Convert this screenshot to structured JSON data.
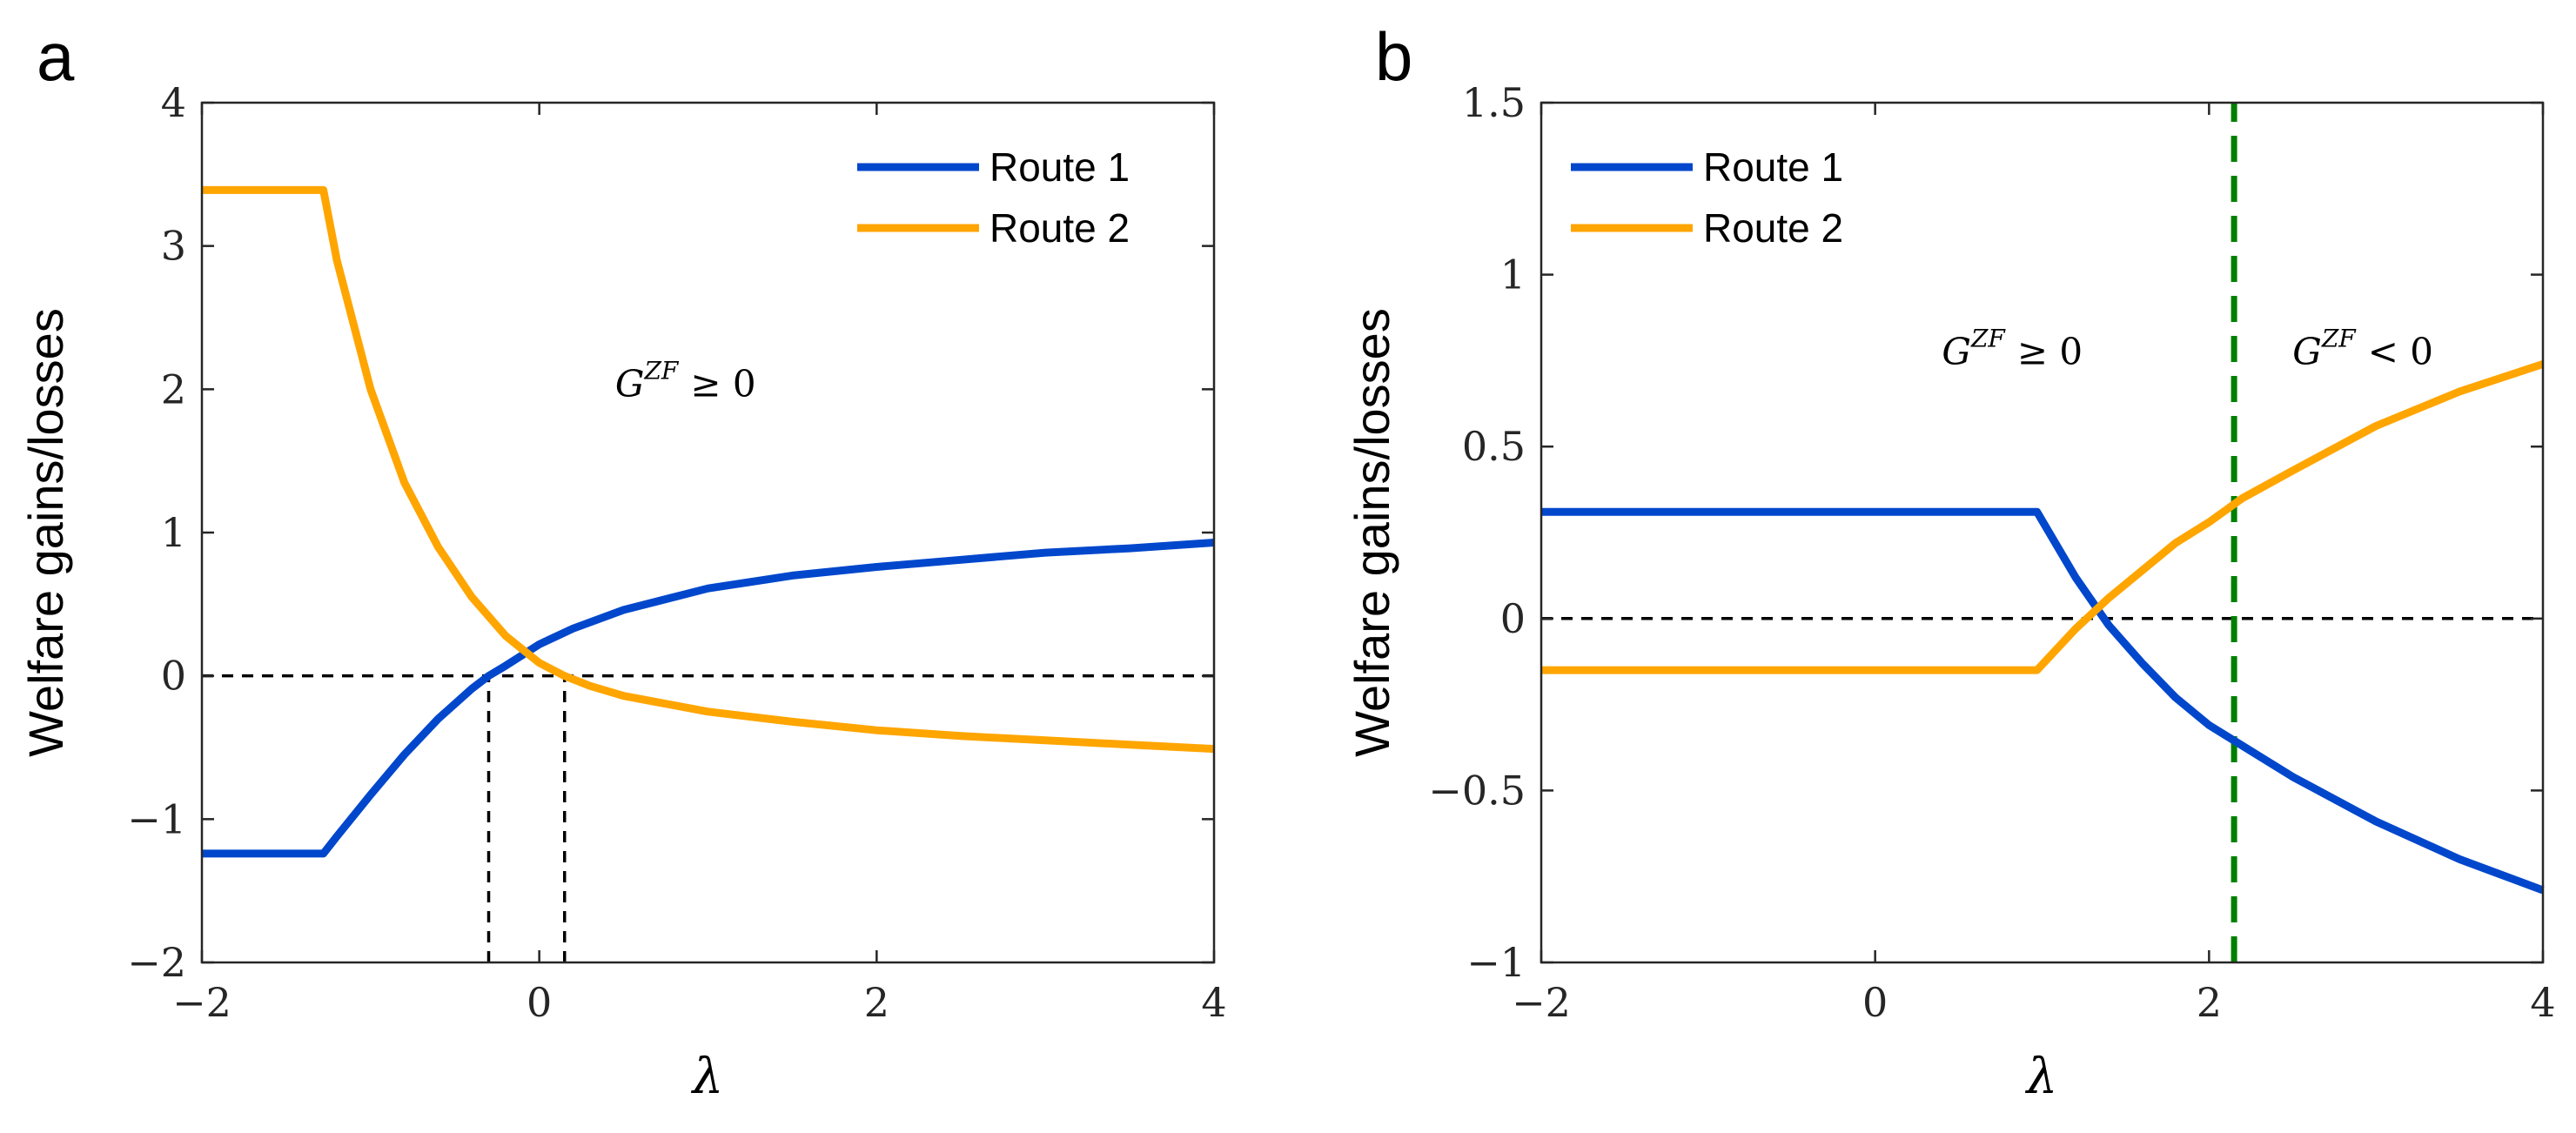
{
  "chart_data": [
    {
      "panel": "a",
      "type": "line",
      "title": "",
      "xlabel": "λ",
      "ylabel": "Welfare gains/losses",
      "xlim": [
        -2,
        4
      ],
      "ylim": [
        -2,
        4
      ],
      "xticks": [
        -2,
        0,
        2,
        4
      ],
      "yticks": [
        -2,
        -1,
        0,
        1,
        2,
        3,
        4
      ],
      "xtick_labels": [
        "−2",
        "0",
        "2",
        "4"
      ],
      "ytick_labels": [
        "−2",
        "−1",
        "0",
        "1",
        "2",
        "3",
        "4"
      ],
      "legend": {
        "placement": "top-right",
        "entries": [
          "Route 1",
          "Route 2"
        ]
      },
      "series": [
        {
          "name": "Route 1",
          "color": "#0047CC",
          "x": [
            -2,
            -1.28,
            -1.2,
            -1.0,
            -0.8,
            -0.6,
            -0.4,
            -0.3,
            -0.2,
            0.0,
            0.2,
            0.5,
            1.0,
            1.5,
            2.0,
            2.5,
            3.0,
            3.5,
            4.0
          ],
          "y": [
            -1.24,
            -1.24,
            -1.12,
            -0.83,
            -0.55,
            -0.3,
            -0.09,
            0.0,
            0.07,
            0.22,
            0.33,
            0.46,
            0.61,
            0.7,
            0.76,
            0.81,
            0.86,
            0.89,
            0.93
          ]
        },
        {
          "name": "Route 2",
          "color": "#FFA500",
          "x": [
            -2,
            -1.28,
            -1.2,
            -1.0,
            -0.8,
            -0.6,
            -0.4,
            -0.2,
            0.0,
            0.15,
            0.3,
            0.5,
            1.0,
            1.5,
            2.0,
            2.5,
            3.0,
            3.5,
            4.0
          ],
          "y": [
            3.39,
            3.39,
            2.9,
            2.0,
            1.35,
            0.9,
            0.55,
            0.28,
            0.09,
            0.0,
            -0.07,
            -0.14,
            -0.25,
            -0.32,
            -0.38,
            -0.42,
            -0.45,
            -0.48,
            -0.51
          ]
        }
      ],
      "reference_lines": [
        {
          "kind": "horizontal",
          "y": 0,
          "style": "dashed",
          "color": "#000000"
        },
        {
          "kind": "vertical",
          "x": -0.3,
          "y_from": -2,
          "y_to": 0,
          "style": "dashed",
          "color": "#000000"
        },
        {
          "kind": "vertical",
          "x": 0.15,
          "y_from": -2,
          "y_to": 0,
          "style": "dashed",
          "color": "#000000"
        }
      ],
      "annotations": [
        {
          "base": "G",
          "sup": "ZF",
          "rel": "≥ 0",
          "x": 0.45,
          "y": 1.95
        }
      ]
    },
    {
      "panel": "b",
      "type": "line",
      "title": "",
      "xlabel": "λ",
      "ylabel": "Welfare gains/losses",
      "xlim": [
        -2,
        4
      ],
      "ylim": [
        -1,
        1.5
      ],
      "xticks": [
        -2,
        0,
        2,
        4
      ],
      "yticks": [
        -1,
        -0.5,
        0,
        0.5,
        1,
        1.5
      ],
      "xtick_labels": [
        "−2",
        "0",
        "2",
        "4"
      ],
      "ytick_labels": [
        "−1",
        "−0.5",
        "0",
        "0.5",
        "1",
        "1.5"
      ],
      "legend": {
        "placement": "top-left",
        "entries": [
          "Route 1",
          "Route 2"
        ]
      },
      "series": [
        {
          "name": "Route 1",
          "color": "#0047CC",
          "x": [
            -2,
            0.97,
            1.2,
            1.4,
            1.6,
            1.8,
            2.0,
            2.2,
            2.5,
            3.0,
            3.5,
            4.0
          ],
          "y": [
            0.31,
            0.31,
            0.12,
            -0.02,
            -0.13,
            -0.23,
            -0.31,
            -0.37,
            -0.46,
            -0.59,
            -0.7,
            -0.79
          ]
        },
        {
          "name": "Route 2",
          "color": "#FFA500",
          "x": [
            -2,
            0.97,
            1.2,
            1.4,
            1.6,
            1.8,
            2.0,
            2.2,
            2.5,
            3.0,
            3.5,
            4.0
          ],
          "y": [
            -0.15,
            -0.15,
            -0.03,
            0.06,
            0.14,
            0.22,
            0.28,
            0.35,
            0.43,
            0.56,
            0.66,
            0.74
          ]
        }
      ],
      "reference_lines": [
        {
          "kind": "horizontal",
          "y": 0,
          "style": "dashed",
          "color": "#000000"
        },
        {
          "kind": "vertical",
          "x": 2.15,
          "y_from": -1,
          "y_to": 1.5,
          "style": "dashed",
          "color": "#008000"
        }
      ],
      "annotations": [
        {
          "base": "G",
          "sup": "ZF",
          "rel": "≥ 0",
          "x": 0.4,
          "y": 0.74
        },
        {
          "base": "G",
          "sup": "ZF",
          "rel": "< 0",
          "x": 2.5,
          "y": 0.74
        }
      ]
    }
  ]
}
